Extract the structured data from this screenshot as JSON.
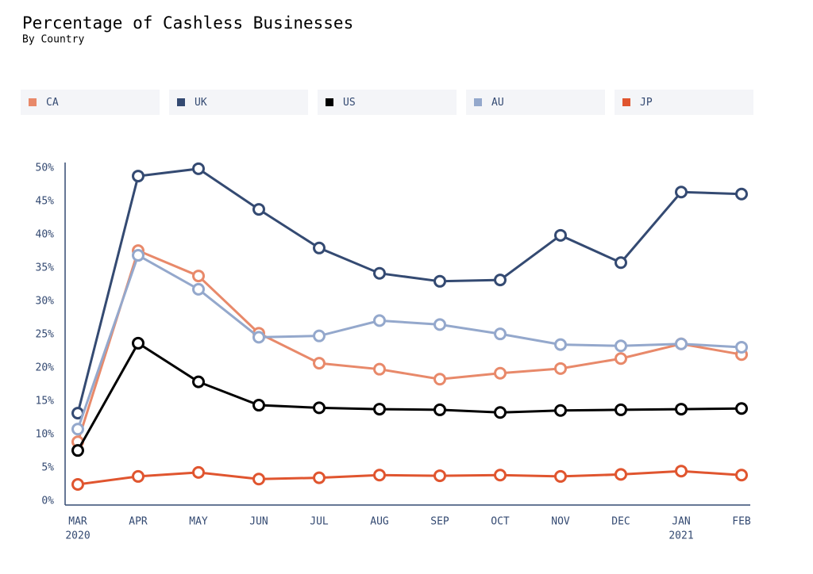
{
  "chart_data": {
    "type": "line",
    "title": "Percentage of Cashless Businesses",
    "subtitle": "By Country",
    "categories": [
      "MAR",
      "APR",
      "MAY",
      "JUN",
      "JUL",
      "AUG",
      "SEP",
      "OCT",
      "NOV",
      "DEC",
      "JAN",
      "FEB"
    ],
    "year_labels": [
      "2020",
      null,
      null,
      null,
      null,
      null,
      null,
      null,
      null,
      null,
      "2021",
      null
    ],
    "series": [
      {
        "name": "CA",
        "color": "#e8896a",
        "values": [
          8.9,
          37.6,
          33.8,
          25.2,
          20.7,
          19.8,
          18.3,
          19.2,
          19.9,
          21.4,
          23.6,
          22.0
        ]
      },
      {
        "name": "UK",
        "color": "#344a72",
        "values": [
          13.2,
          48.8,
          49.9,
          43.8,
          38.0,
          34.2,
          33.0,
          33.2,
          39.9,
          35.8,
          46.4,
          46.1
        ]
      },
      {
        "name": "US",
        "color": "#000000",
        "values": [
          7.6,
          23.7,
          17.9,
          14.4,
          14.0,
          13.8,
          13.7,
          13.3,
          13.6,
          13.7,
          13.8,
          13.9
        ]
      },
      {
        "name": "AU",
        "color": "#94a8cc",
        "values": [
          10.8,
          36.9,
          31.8,
          24.6,
          24.8,
          27.1,
          26.5,
          25.1,
          23.5,
          23.3,
          23.6,
          23.1
        ]
      },
      {
        "name": "JP",
        "color": "#e0552f",
        "values": [
          2.5,
          3.7,
          4.3,
          3.3,
          3.5,
          3.9,
          3.8,
          3.9,
          3.7,
          4.0,
          4.5,
          3.9
        ]
      }
    ],
    "ylim": [
      0,
      50
    ],
    "yticks": [
      {
        "value": 0,
        "label": "0%"
      },
      {
        "value": 5,
        "label": "5%"
      },
      {
        "value": 10,
        "label": "10%"
      },
      {
        "value": 15,
        "label": "15%"
      },
      {
        "value": 20,
        "label": "20%"
      },
      {
        "value": 25,
        "label": "25%"
      },
      {
        "value": 30,
        "label": "30%"
      },
      {
        "value": 35,
        "label": "35%"
      },
      {
        "value": 40,
        "label": "40%"
      },
      {
        "value": 45,
        "label": "45%"
      },
      {
        "value": 50,
        "label": "50%"
      }
    ],
    "grid": false
  }
}
